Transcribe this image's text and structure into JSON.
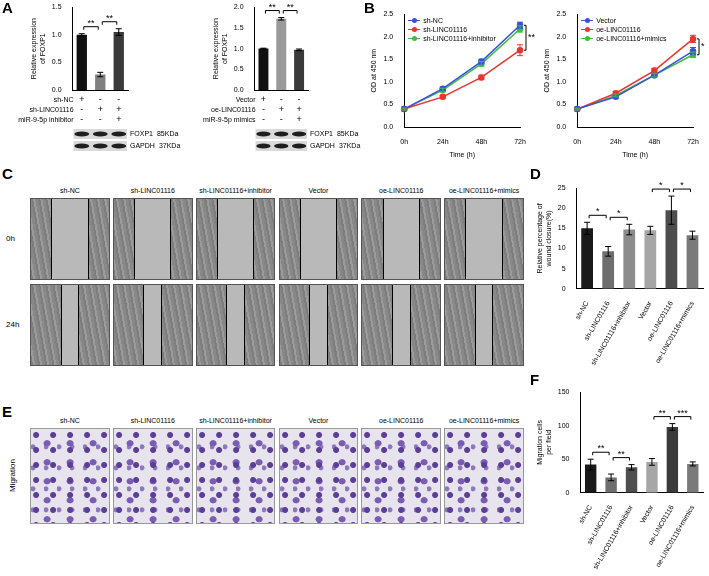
{
  "panel_labels": [
    "A",
    "B",
    "C",
    "D",
    "E",
    "F"
  ],
  "chart_data": [
    {
      "type": "bar",
      "categories": [
        null,
        null,
        null
      ],
      "values": [
        1.0,
        0.28,
        1.05
      ],
      "errors": [
        0.02,
        0.04,
        0.06
      ],
      "colors": [
        "#111111",
        "#808080",
        "#3a3a3a"
      ],
      "ylabel": "Relative expression of FOXP1",
      "ylim": [
        0,
        1.5
      ],
      "yticks": [
        {
          "value": 0,
          "label": "0.0"
        },
        0.5,
        {
          "value": 1,
          "label": "1.0"
        },
        1.5
      ],
      "grid": false,
      "tick_labels": "y",
      "significance": [
        {
          "from": 0,
          "to": 1,
          "label": "**"
        },
        {
          "from": 1,
          "to": 2,
          "label": "**"
        }
      ],
      "conditions": [
        {
          "label": "sh-NC",
          "signs": [
            "+",
            "-",
            "-"
          ]
        },
        {
          "label": "sh-LINC01116",
          "signs": [
            "-",
            "+",
            "+"
          ]
        },
        {
          "label": "miR-9-5p inhibitor",
          "signs": [
            "-",
            "-",
            "+"
          ]
        }
      ],
      "blot": [
        {
          "protein": "FOXP1",
          "size": "85KDa"
        },
        {
          "protein": "GAPDH",
          "size": "37KDa"
        }
      ]
    },
    {
      "type": "bar",
      "categories": [
        null,
        null,
        null
      ],
      "values": [
        1.0,
        1.72,
        0.97
      ],
      "errors": [
        0.01,
        0.03,
        0.02
      ],
      "colors": [
        "#111111",
        "#9a9a9a",
        "#3a3a3a"
      ],
      "ylabel": "Relative expression of FOXP1",
      "ylim": [
        0,
        2
      ],
      "yticks": [
        {
          "value": 0,
          "label": "0.0"
        },
        0.5,
        {
          "value": 1,
          "label": "1.0"
        },
        1.5,
        {
          "value": 2,
          "label": "2.0"
        }
      ],
      "grid": false,
      "tick_labels": "y",
      "significance": [
        {
          "from": 0,
          "to": 1,
          "label": "**"
        },
        {
          "from": 1,
          "to": 2,
          "label": "**"
        }
      ],
      "conditions": [
        {
          "label": "Vector",
          "signs": [
            "+",
            "-",
            "-"
          ]
        },
        {
          "label": "oe-LINC01116",
          "signs": [
            "-",
            "+",
            "+"
          ]
        },
        {
          "label": "miR-9-5p mimics",
          "signs": [
            "-",
            "-",
            "+"
          ]
        }
      ],
      "blot": [
        {
          "protein": "FOXP1",
          "size": "85KDa"
        },
        {
          "protein": "GAPDH",
          "size": "37KDa"
        }
      ]
    },
    {
      "type": "line",
      "categories": [
        "0h",
        "24h",
        "48h",
        "72h"
      ],
      "xlabel": "Time (h)",
      "ylabel": "OD at 450 nm",
      "ylim": [
        0,
        2.5
      ],
      "yticks": [
        {
          "value": 0,
          "label": "0.0"
        },
        0.5,
        {
          "value": 1,
          "label": "1.0"
        },
        1.5,
        {
          "value": 2,
          "label": "2.0"
        },
        2.5
      ],
      "grid": false,
      "legend": "upper left",
      "marker": "circle",
      "series": [
        {
          "name": "sh-NC",
          "color": "#3a4fe0",
          "values": [
            0.4,
            0.85,
            1.45,
            2.25
          ],
          "errors": [
            0.02,
            0.04,
            0.05,
            0.07
          ]
        },
        {
          "name": "sh-LINC01116",
          "color": "#e8352f",
          "values": [
            0.4,
            0.67,
            1.1,
            1.7
          ],
          "errors": [
            0.02,
            0.03,
            0.05,
            0.12
          ]
        },
        {
          "name": "sh-LINC01116+inhibitor",
          "color": "#3dbf3d",
          "values": [
            0.4,
            0.82,
            1.4,
            2.17
          ],
          "errors": [
            0.02,
            0.04,
            0.05,
            0.07
          ]
        }
      ],
      "significance": [
        {
          "from": 0,
          "to": 1,
          "at": "72h",
          "label": "**"
        }
      ]
    },
    {
      "type": "line",
      "categories": [
        "0h",
        "24h",
        "48h",
        "72h"
      ],
      "xlabel": "Time (h)",
      "ylabel": "OD at 450 nm",
      "ylim": [
        0,
        2.5
      ],
      "yticks": [
        {
          "value": 0,
          "label": "0.0"
        },
        0.5,
        {
          "value": 1,
          "label": "1.0"
        },
        1.5,
        {
          "value": 2,
          "label": "2.0"
        },
        2.5
      ],
      "grid": false,
      "legend": "upper left",
      "marker": "circle",
      "series": [
        {
          "name": "Vector",
          "color": "#3a4fe0",
          "values": [
            0.4,
            0.67,
            1.15,
            1.68
          ],
          "errors": [
            0.02,
            0.03,
            0.04,
            0.08
          ]
        },
        {
          "name": "oe-LINC01116",
          "color": "#e8352f",
          "values": [
            0.4,
            0.75,
            1.25,
            1.95
          ],
          "errors": [
            0.02,
            0.04,
            0.05,
            0.08
          ]
        },
        {
          "name": "oe-LINC01116+mimics",
          "color": "#3dbf3d",
          "values": [
            0.4,
            0.7,
            1.15,
            1.6
          ],
          "errors": [
            0.02,
            0.03,
            0.04,
            0.06
          ]
        }
      ],
      "significance": [
        {
          "from": 1,
          "to": 2,
          "at": "72h",
          "label": "*"
        }
      ]
    },
    {
      "type": "bar",
      "categories": [
        "sh-NC",
        "sh-LINC01116",
        "sh-LINC01116+inhibitor",
        "Vector",
        "oe-LINC01116",
        "oe-LINC01116+mimics"
      ],
      "values": [
        15,
        9.3,
        14.7,
        14.5,
        19.5,
        13.3
      ],
      "errors": [
        1.5,
        1.2,
        1.3,
        1,
        3.5,
        1
      ],
      "colors": [
        "#1a1a1a",
        "#6e6e6e",
        "#8c8c8c",
        "#a6a6a6",
        "#4d4d4d",
        "#7a7a7a"
      ],
      "ylabel": "Relative percentage of wound closure(%)",
      "ylim": [
        0,
        25
      ],
      "yticks": [
        0,
        5,
        10,
        15,
        20,
        25
      ],
      "grid": false,
      "significance": [
        {
          "from": 0,
          "to": 1,
          "label": "*"
        },
        {
          "from": 1,
          "to": 2,
          "label": "*"
        },
        {
          "from": 3,
          "to": 4,
          "label": "*"
        },
        {
          "from": 4,
          "to": 5,
          "label": "*"
        }
      ]
    },
    {
      "type": "bar",
      "categories": [
        "sh-NC",
        "sh-LINC01116",
        "sh-LINC01116+inhibitor",
        "Vector",
        "oe-LINC01116",
        "oe-LINC01116+mimics"
      ],
      "values": [
        42,
        23,
        38,
        46,
        98,
        43
      ],
      "errors": [
        8,
        5,
        4,
        5,
        5,
        3
      ],
      "colors": [
        "#1a1a1a",
        "#6e6e6e",
        "#4d4d4d",
        "#a6a6a6",
        "#3a3a3a",
        "#7a7a7a"
      ],
      "ylabel": "Migration cells per field",
      "ylim": [
        0,
        150
      ],
      "yticks": [
        0,
        50,
        100,
        150
      ],
      "grid": false,
      "significance": [
        {
          "from": 0,
          "to": 1,
          "label": "**"
        },
        {
          "from": 1,
          "to": 2,
          "label": "**"
        },
        {
          "from": 3,
          "to": 4,
          "label": "**"
        },
        {
          "from": 4,
          "to": 5,
          "label": "***"
        }
      ]
    }
  ],
  "wound_images": {
    "columns": [
      "sh-NC",
      "sh-LINC01116",
      "sh-LINC01116+inhibitor",
      "Vector",
      "oe-LINC01116",
      "oe-LINC01116+mimics"
    ],
    "rows": [
      "0h",
      "24h"
    ]
  },
  "migration_images": {
    "columns": [
      "sh-NC",
      "sh-LINC01116",
      "sh-LINC01116+inhibitor",
      "Vector",
      "oe-LINC01116",
      "oe-LINC01116+mimics"
    ],
    "row_label": "Migration"
  }
}
